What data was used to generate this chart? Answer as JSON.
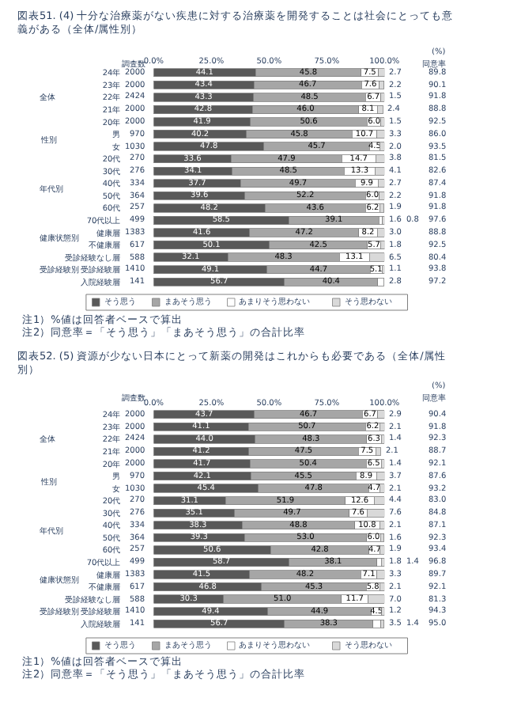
{
  "chart_data": [
    {
      "type": "bar",
      "orientation": "horizontal",
      "stacked": true,
      "legend": "bottom",
      "title": "図表51. (4) 十分な治療薬がない疾患に対する治療薬を開発することは社会にとっても意義がある（全体/属性別）",
      "categories": [
        "24年",
        "23年",
        "22年",
        "21年",
        "20年",
        "男",
        "女",
        "20代",
        "30代",
        "40代",
        "50代",
        "60代",
        "70代以上",
        "健康層",
        "不健康層",
        "受診経験なし層",
        "受診経験層",
        "入院経験層"
      ],
      "series": [
        {
          "name": "そう思う",
          "color": "#595959",
          "values": [
            44.1,
            43.4,
            43.3,
            42.8,
            41.9,
            40.2,
            47.8,
            33.6,
            34.1,
            37.7,
            39.6,
            48.2,
            58.5,
            41.6,
            50.1,
            32.1,
            49.1,
            56.7
          ],
          "value_labels": [
            "44.1",
            "43.4",
            "43.3",
            "42.8",
            "41.9",
            "40.2",
            "47.8",
            "33.6",
            "34.1",
            "37.7",
            "39.6",
            "48.2",
            "58.5",
            "41.6",
            "50.1",
            "32.1",
            "49.1",
            "56.7"
          ]
        },
        {
          "name": "まあそう思う",
          "color": "#a6a6a6",
          "values": [
            45.8,
            46.7,
            48.5,
            46.0,
            50.6,
            45.8,
            45.7,
            47.9,
            48.5,
            49.7,
            52.2,
            43.6,
            39.1,
            47.2,
            42.5,
            48.3,
            44.7,
            40.4
          ],
          "value_labels": [
            "45.8",
            "46.7",
            "48.5",
            "46.0",
            "50.6",
            "45.8",
            "45.7",
            "47.9",
            "48.5",
            "49.7",
            "52.2",
            "43.6",
            "39.1",
            "47.2",
            "42.5",
            "48.3",
            "44.7",
            "40.4"
          ]
        },
        {
          "name": "あまりそう思わない",
          "color": "#ffffff",
          "values": [
            7.5,
            7.6,
            6.7,
            8.1,
            6.0,
            10.7,
            4.5,
            14.7,
            13.3,
            9.9,
            6.0,
            6.2,
            1.6,
            8.2,
            5.7,
            13.1,
            5.1,
            2.8
          ],
          "value_labels": [
            "7.5",
            "7.6",
            "6.7",
            "8.1",
            "6.0",
            "10.7",
            "4.5",
            "14.7",
            "13.3",
            "9.9",
            "6.0",
            "6.2",
            "1.6",
            "8.2",
            "5.7",
            "13.1",
            "5.1",
            "2.8"
          ]
        },
        {
          "name": "そう思わない",
          "color": "#d9d9d9",
          "values": [
            2.7,
            2.2,
            1.5,
            2.4,
            1.5,
            3.3,
            2.0,
            3.8,
            4.1,
            2.7,
            2.2,
            1.9,
            0.8,
            3.0,
            1.8,
            6.5,
            1.1,
            null
          ],
          "value_labels": [
            "2.7",
            "2.2",
            "1.5",
            "2.4",
            "1.5",
            "3.3",
            "2.0",
            "3.8",
            "4.1",
            "2.7",
            "2.2",
            "1.9",
            "0.8",
            "3.0",
            "1.8",
            "6.5",
            "1.1",
            null
          ]
        }
      ],
      "xlim": [
        0,
        100
      ],
      "xticks": [
        {
          "value": 0,
          "label": "0.0%"
        },
        {
          "value": 25,
          "label": "25.0%"
        },
        {
          "value": 50,
          "label": "50.0%"
        },
        {
          "value": 75,
          "label": "75.0%"
        },
        {
          "value": 100,
          "label": "100.0%"
        }
      ],
      "annotations": [
        "(%)",
        "調査数",
        "同意率",
        "2000",
        "2000",
        "2424",
        "2000",
        "2000",
        "970",
        "1030",
        "270",
        "276",
        "334",
        "364",
        "257",
        "499",
        "1383",
        "617",
        "588",
        "1410",
        "141",
        "89.8",
        "90.1",
        "91.8",
        "88.8",
        "92.5",
        "86.0",
        "93.5",
        "81.5",
        "82.6",
        "87.4",
        "91.8",
        "91.8",
        "97.6",
        "88.8",
        "92.5",
        "80.4",
        "93.8",
        "97.2",
        "注1）%値は回答者ベースで算出",
        "注2）同意率＝「そう思う」「まあそう思う」の合計比率",
        "全体",
        "性別",
        "年代別",
        "健康状態別",
        "受診経験別"
      ]
    },
    {
      "type": "bar",
      "orientation": "horizontal",
      "stacked": true,
      "legend": "bottom",
      "title": "図表52. (5) 資源が少ない日本にとって新薬の開発はこれからも必要である（全体/属性別）",
      "categories": [
        "24年",
        "23年",
        "22年",
        "21年",
        "20年",
        "男",
        "女",
        "20代",
        "30代",
        "40代",
        "50代",
        "60代",
        "70代以上",
        "健康層",
        "不健康層",
        "受診経験なし層",
        "受診経験層",
        "入院経験層"
      ],
      "series": [
        {
          "name": "そう思う",
          "color": "#595959",
          "values": [
            43.7,
            41.1,
            44.0,
            41.2,
            41.7,
            42.1,
            45.4,
            31.1,
            35.1,
            38.3,
            39.3,
            50.6,
            58.7,
            41.5,
            46.8,
            30.3,
            49.4,
            56.7
          ],
          "value_labels": [
            "43.7",
            "41.1",
            "44.0",
            "41.2",
            "41.7",
            "42.1",
            "45.4",
            "31.1",
            "35.1",
            "38.3",
            "39.3",
            "50.6",
            "58.7",
            "41.5",
            "46.8",
            "30.3",
            "49.4",
            "56.7"
          ]
        },
        {
          "name": "まあそう思う",
          "color": "#a6a6a6",
          "values": [
            46.7,
            50.7,
            48.3,
            47.5,
            50.4,
            45.5,
            47.8,
            51.9,
            49.7,
            48.8,
            53.0,
            42.8,
            38.1,
            48.2,
            45.3,
            51.0,
            44.9,
            38.3
          ],
          "value_labels": [
            "46.7",
            "50.7",
            "48.3",
            "47.5",
            "50.4",
            "45.5",
            "47.8",
            "51.9",
            "49.7",
            "48.8",
            "53.0",
            "42.8",
            "38.1",
            "48.2",
            "45.3",
            "51.0",
            "44.9",
            "38.3"
          ]
        },
        {
          "name": "あまりそう思わない",
          "color": "#ffffff",
          "values": [
            6.7,
            6.2,
            6.3,
            7.5,
            6.5,
            8.9,
            4.7,
            12.6,
            7.6,
            10.8,
            6.0,
            4.7,
            1.8,
            7.1,
            5.8,
            11.7,
            4.5,
            3.5
          ],
          "value_labels": [
            "6.7",
            "6.2",
            "6.3",
            "7.5",
            "6.5",
            "8.9",
            "4.7",
            "12.6",
            "7.6",
            "10.8",
            "6.0",
            "4.7",
            "1.8",
            "7.1",
            "5.8",
            "11.7",
            "4.5",
            "3.5"
          ]
        },
        {
          "name": "そう思わない",
          "color": "#d9d9d9",
          "values": [
            2.9,
            2.1,
            1.4,
            2.1,
            1.4,
            3.7,
            2.1,
            4.4,
            7.6,
            2.1,
            1.6,
            1.9,
            1.4,
            3.3,
            2.1,
            7.0,
            1.2,
            1.4
          ],
          "value_labels": [
            "2.9",
            "2.1",
            "1.4",
            "2.1",
            "1.4",
            "3.7",
            "2.1",
            "4.4",
            "7.6",
            "2.1",
            "1.6",
            "1.9",
            "1.4",
            "3.3",
            "2.1",
            "7.0",
            "1.2",
            "1.4"
          ]
        }
      ],
      "xlim": [
        0,
        100
      ],
      "xticks": [
        {
          "value": 0,
          "label": "0.0%"
        },
        {
          "value": 25,
          "label": "25.0%"
        },
        {
          "value": 50,
          "label": "50.0%"
        },
        {
          "value": 75,
          "label": "75.0%"
        },
        {
          "value": 100,
          "label": "100.0%"
        }
      ],
      "annotations": [
        "(%)",
        "調査数",
        "同意率",
        "2000",
        "2000",
        "2424",
        "2000",
        "2000",
        "970",
        "1030",
        "270",
        "276",
        "334",
        "364",
        "257",
        "499",
        "1383",
        "617",
        "588",
        "1410",
        "141",
        "90.4",
        "91.8",
        "92.3",
        "88.7",
        "92.1",
        "87.6",
        "93.2",
        "83.0",
        "84.8",
        "87.1",
        "92.3",
        "93.4",
        "96.8",
        "89.7",
        "92.1",
        "81.3",
        "94.3",
        "95.0",
        "注1）%値は回答者ベースで算出",
        "注2）同意率＝「そう思う」「まあそう思う」の合計比率",
        "全体",
        "性別",
        "年代別",
        "健康状態別",
        "受診経験別"
      ]
    }
  ]
}
